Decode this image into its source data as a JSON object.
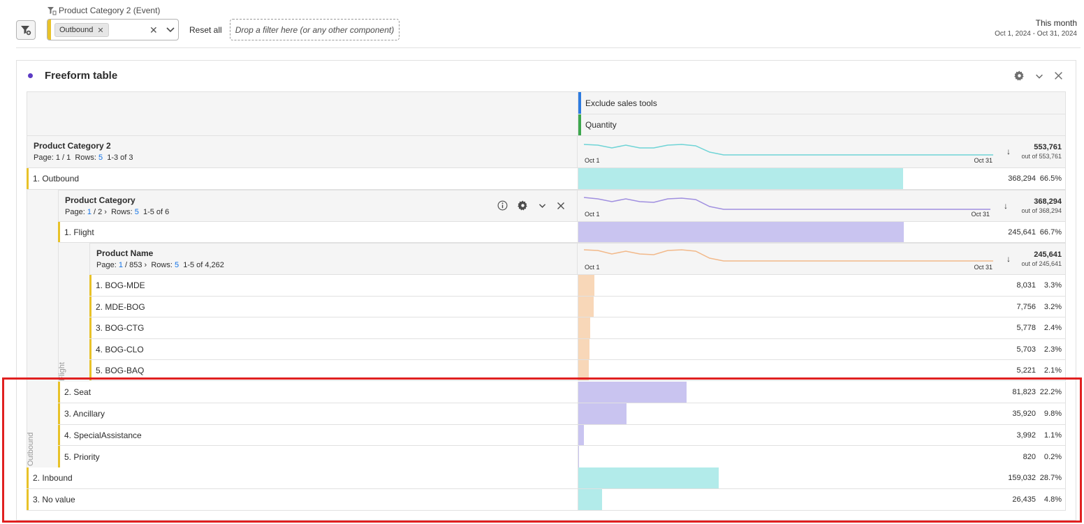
{
  "filter_bar": {
    "dimension_label": "Product Category 2 (Event)",
    "tag_value": "Outbound",
    "reset_label": "Reset all",
    "drop_placeholder": "Drop a filter here (or any other component)",
    "date_title": "This month",
    "date_range": "Oct 1, 2024 - Oct 31, 2024"
  },
  "panel": {
    "title": "Freeform table"
  },
  "table": {
    "segment_header": "Exclude sales tools",
    "metric_header": "Quantity",
    "top_dimension": {
      "title": "Product Category 2",
      "pager": {
        "page_prefix": "Page:",
        "page": "1 / 1",
        "rows_label": "Rows:",
        "rows": "5",
        "range": "1-3 of 3"
      },
      "spark": {
        "start": "Oct 1",
        "end": "Oct 31",
        "total": "553,761",
        "out_of": "out of 553,761"
      }
    },
    "row_outbound": {
      "label": "1.  Outbound",
      "value": "368,294",
      "pct": "66.5%",
      "share": 0.665
    },
    "product_category": {
      "title": "Product Category",
      "pager": {
        "page_prefix": "Page:",
        "page": "1",
        "page_total": "/ 2",
        "rows_label": "Rows:",
        "rows": "5",
        "range": "1-5 of 6"
      },
      "spark": {
        "start": "Oct 1",
        "end": "Oct 31",
        "total": "368,294",
        "out_of": "out of 368,294"
      }
    },
    "row_flight": {
      "label": "1.  Flight",
      "value": "245,641",
      "pct": "66.7%",
      "share": 0.667
    },
    "product_name": {
      "title": "Product Name",
      "pager": {
        "page_prefix": "Page:",
        "page": "1",
        "page_total": "/ 853",
        "rows_label": "Rows:",
        "rows": "5",
        "range": "1-5 of 4,262"
      },
      "spark": {
        "start": "Oct 1",
        "end": "Oct 31",
        "total": "245,641",
        "out_of": "out of 245,641"
      }
    },
    "product_rows": [
      {
        "label": "1.  BOG-MDE",
        "value": "8,031",
        "pct": "3.3%",
        "share": 0.033
      },
      {
        "label": "2.  MDE-BOG",
        "value": "7,756",
        "pct": "3.2%",
        "share": 0.032
      },
      {
        "label": "3.  BOG-CTG",
        "value": "5,778",
        "pct": "2.4%",
        "share": 0.024
      },
      {
        "label": "4.  BOG-CLO",
        "value": "5,703",
        "pct": "2.3%",
        "share": 0.023
      },
      {
        "label": "5.  BOG-BAQ",
        "value": "5,221",
        "pct": "2.1%",
        "share": 0.021
      }
    ],
    "flight_vertical_label": "Flight",
    "category_rows": [
      {
        "label": "2.  Seat",
        "value": "81,823",
        "pct": "22.2%",
        "share": 0.222
      },
      {
        "label": "3.  Ancillary",
        "value": "35,920",
        "pct": "9.8%",
        "share": 0.098
      },
      {
        "label": "4.  SpecialAssistance",
        "value": "3,992",
        "pct": "1.1%",
        "share": 0.011
      },
      {
        "label": "5.  Priority",
        "value": "820",
        "pct": "0.2%",
        "share": 0.002
      }
    ],
    "outbound_vertical_label": "Outbound",
    "top_rows": [
      {
        "label": "2.  Inbound",
        "value": "159,032",
        "pct": "28.7%",
        "share": 0.287
      },
      {
        "label": "3.  No value",
        "value": "26,435",
        "pct": "4.8%",
        "share": 0.048
      }
    ]
  },
  "colors": {
    "teal": "#b2ebea",
    "lavender": "#c9c4f0",
    "peach": "#f8d7b8",
    "grip_yellow": "#e8c229",
    "segment_blue": "#2d7be0",
    "metric_green": "#3da74e"
  }
}
